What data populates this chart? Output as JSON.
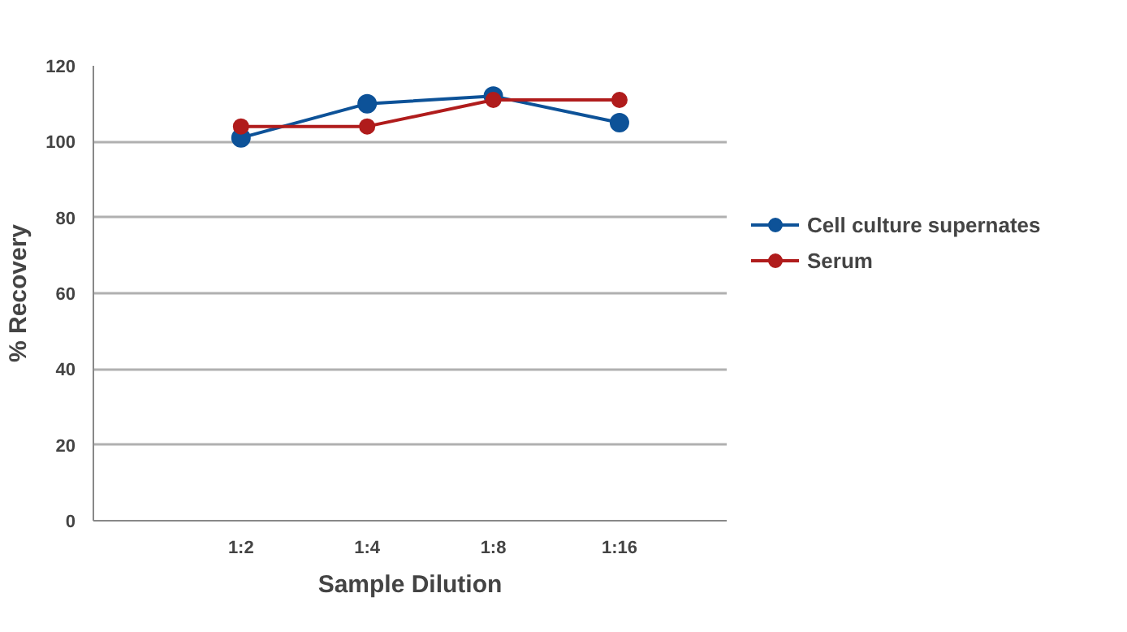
{
  "chart_data": {
    "type": "line",
    "xlabel": "Sample Dilution",
    "ylabel": "% Recovery",
    "categories": [
      "1:2",
      "1:4",
      "1:8",
      "1:16"
    ],
    "series": [
      {
        "name": "Cell culture supernates",
        "color": "#0d5298",
        "values": [
          101,
          110,
          112,
          105
        ]
      },
      {
        "name": "Serum",
        "color": "#b01c1c",
        "values": [
          104,
          104,
          111,
          111
        ]
      }
    ],
    "ylim": [
      0,
      120
    ],
    "yticks": [
      0,
      20,
      40,
      60,
      80,
      100,
      120
    ],
    "grid": "y",
    "legend": "right",
    "marker": "circle",
    "line_style": "solid"
  }
}
